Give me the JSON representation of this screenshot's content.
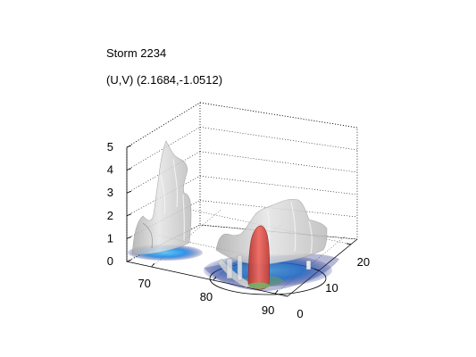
{
  "chart_data": {
    "type": "surface3d",
    "title": "Storm 2234",
    "subtitle": "(U,V) (2.1684,-1.0512)",
    "xlabel": "",
    "ylabel": "",
    "zlabel": "",
    "x_ticks": [
      70,
      80,
      90
    ],
    "y_ticks": [
      0,
      10,
      20
    ],
    "z_ticks": [
      0,
      1,
      2,
      3,
      4,
      5
    ],
    "xlim": [
      66,
      92
    ],
    "ylim": [
      0,
      22
    ],
    "zlim": [
      0,
      5
    ],
    "grid": true,
    "surface_color": "#d2d2d2",
    "core_color": "#d6453e",
    "ground_colors": [
      "#1a237e",
      "#1e88e5",
      "#4fc3f7",
      "#66bb6a",
      "#c0ca33"
    ]
  }
}
